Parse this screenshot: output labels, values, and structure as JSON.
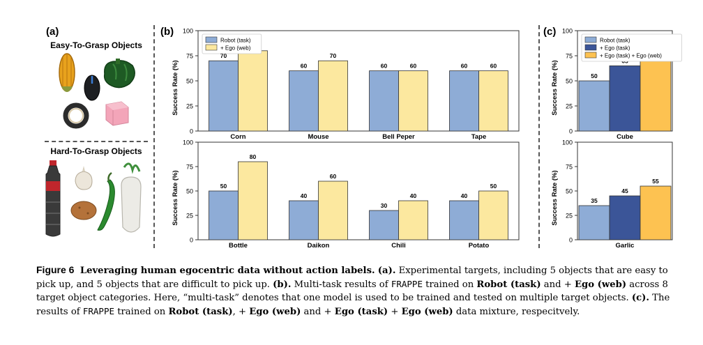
{
  "panels": {
    "a": {
      "label": "(a)",
      "easy_heading": "Easy-To-Grasp Objects",
      "hard_heading": "Hard-To-Grasp Objects"
    },
    "b": {
      "label": "(b)"
    },
    "c": {
      "label": "(c)"
    }
  },
  "colors": {
    "robot_task": "#8eacd6",
    "ego_web": "#fce89f",
    "ego_task": "#3b5598",
    "ego_task_web": "#fdc251"
  },
  "chart_data": [
    {
      "id": "b-top",
      "type": "bar",
      "categories": [
        "Corn",
        "Mouse",
        "Bell Peper",
        "Tape"
      ],
      "series": [
        {
          "name": "Robot (task)",
          "values": [
            70,
            60,
            60,
            60
          ]
        },
        {
          "name": "+ Ego (web)",
          "values": [
            80,
            70,
            60,
            60
          ]
        }
      ],
      "ylabel": "Success Rate (%)",
      "ylim": [
        0,
        100
      ],
      "yticks": [
        0,
        25,
        50,
        75,
        100
      ],
      "legend": "top-left",
      "grid": false
    },
    {
      "id": "b-bottom",
      "type": "bar",
      "categories": [
        "Bottle",
        "Daikon",
        "Chili",
        "Potato"
      ],
      "series": [
        {
          "name": "Robot (task)",
          "values": [
            50,
            40,
            30,
            40
          ]
        },
        {
          "name": "+ Ego (web)",
          "values": [
            80,
            60,
            40,
            50
          ]
        }
      ],
      "ylabel": "Success Rate (%)",
      "ylim": [
        0,
        100
      ],
      "yticks": [
        0,
        25,
        50,
        75,
        100
      ],
      "legend": "none",
      "grid": false
    },
    {
      "id": "c-top",
      "type": "bar",
      "categories": [
        "Cube"
      ],
      "series": [
        {
          "name": "Robot (task)",
          "values": [
            50
          ]
        },
        {
          "name": "+ Ego (task)",
          "values": [
            65
          ]
        },
        {
          "name": "+ Ego (task) + Ego (web)",
          "values": [
            80
          ]
        }
      ],
      "ylabel": "Success Rate (%)",
      "ylim": [
        0,
        100
      ],
      "yticks": [
        0,
        25,
        50,
        75,
        100
      ],
      "legend": "top-left",
      "grid": false
    },
    {
      "id": "c-bottom",
      "type": "bar",
      "categories": [
        "Garlic"
      ],
      "series": [
        {
          "name": "Robot (task)",
          "values": [
            35
          ]
        },
        {
          "name": "+ Ego (task)",
          "values": [
            45
          ]
        },
        {
          "name": "+ Ego (task) + Ego (web)",
          "values": [
            55
          ]
        }
      ],
      "ylabel": "Success Rate (%)",
      "ylim": [
        0,
        100
      ],
      "yticks": [
        0,
        25,
        50,
        75,
        100
      ],
      "legend": "none",
      "grid": false
    }
  ],
  "caption": {
    "figure_label": "Figure 6",
    "title": "Leveraging human egocentric data without action labels.",
    "a_ref": "(a).",
    "a_text": " Experimental targets, including 5 objects that are easy to pick up, and 5 objects that are difficult to pick up. ",
    "b_ref": "(b).",
    "b_text1": " Multi-task results of ",
    "method": "FRAPPE",
    "b_text2": " trained on ",
    "robot_task": "Robot (task)",
    "and1": " and + ",
    "ego_web": "Ego (web)",
    "b_text3": " across 8 target object categories. Here, “multi-task” denotes that one model is used to be trained and tested on multiple target objects. ",
    "c_ref": "(c).",
    "c_text1": " The results of ",
    "c_text2": " trained on ",
    "c_robot": "Robot (task)",
    "c_text3": ", + ",
    "c_ego_web": "Ego (web)",
    "c_text4": " and + ",
    "c_ego_task": "Ego (task)",
    "c_text5": " + ",
    "c_ego_web2": "Ego (web)",
    "c_text6": " data mixture, respecitvely."
  }
}
